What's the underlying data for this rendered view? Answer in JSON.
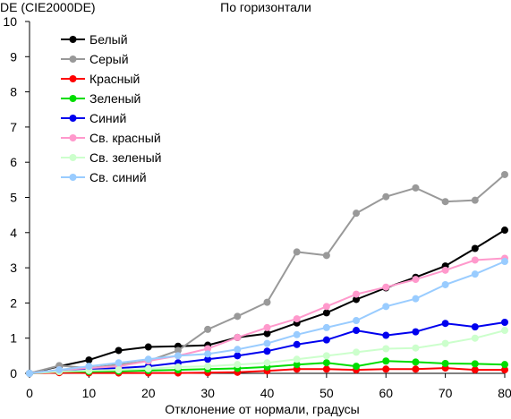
{
  "chart_data": {
    "type": "line",
    "title": "По горизонтали",
    "ylabel": "DE (CIE2000DE)",
    "xlabel": "Отклонение от нормали, градусы",
    "xlim": [
      0,
      80
    ],
    "ylim": [
      0,
      10
    ],
    "x_ticks": [
      "0",
      "10",
      "20",
      "30",
      "40",
      "50",
      "60",
      "70",
      "80"
    ],
    "y_ticks": [
      "0",
      "1",
      "2",
      "3",
      "4",
      "5",
      "6",
      "7",
      "8",
      "9",
      "10"
    ],
    "grid": false,
    "legend_position": "upper-left",
    "x": [
      0,
      5,
      10,
      15,
      20,
      25,
      30,
      35,
      40,
      45,
      50,
      55,
      60,
      65,
      70,
      75,
      80
    ],
    "series": [
      {
        "name": "Белый",
        "color": "#000000",
        "values": [
          0,
          0.2,
          0.38,
          0.65,
          0.75,
          0.77,
          0.8,
          1.02,
          1.13,
          1.43,
          1.72,
          2.1,
          2.43,
          2.73,
          3.05,
          3.55,
          4.07
        ]
      },
      {
        "name": "Серый",
        "color": "#999999",
        "values": [
          0,
          0.22,
          0.15,
          0.25,
          0.35,
          0.65,
          1.25,
          1.62,
          2.02,
          3.45,
          3.35,
          4.55,
          5.02,
          5.27,
          4.88,
          4.92,
          5.65
        ]
      },
      {
        "name": "Красный",
        "color": "#ff0000",
        "values": [
          0,
          0.02,
          0.01,
          0.01,
          0.01,
          0.01,
          0.02,
          0.03,
          0.07,
          0.12,
          0.12,
          0.1,
          0.12,
          0.12,
          0.15,
          0.1,
          0.1
        ]
      },
      {
        "name": "Зеленый",
        "color": "#00dd00",
        "values": [
          0,
          0.05,
          0.05,
          0.06,
          0.08,
          0.1,
          0.12,
          0.14,
          0.18,
          0.25,
          0.3,
          0.2,
          0.35,
          0.32,
          0.28,
          0.27,
          0.25
        ]
      },
      {
        "name": "Синий",
        "color": "#0000ee",
        "values": [
          0,
          0.08,
          0.12,
          0.15,
          0.2,
          0.3,
          0.4,
          0.5,
          0.63,
          0.82,
          0.95,
          1.22,
          1.08,
          1.18,
          1.42,
          1.32,
          1.45
        ]
      },
      {
        "name": "Св. красный",
        "color": "#ff99cc",
        "values": [
          0,
          0.1,
          0.15,
          0.2,
          0.35,
          0.5,
          0.7,
          1.02,
          1.3,
          1.55,
          1.9,
          2.25,
          2.45,
          2.67,
          2.93,
          3.22,
          3.27
        ]
      },
      {
        "name": "Св. зеленый",
        "color": "#ccffcc",
        "values": [
          0,
          0.05,
          0.08,
          0.1,
          0.13,
          0.18,
          0.2,
          0.25,
          0.3,
          0.4,
          0.5,
          0.6,
          0.7,
          0.72,
          0.85,
          1.0,
          1.22
        ]
      },
      {
        "name": "Св. синий",
        "color": "#99ccff",
        "values": [
          0,
          0.1,
          0.2,
          0.3,
          0.4,
          0.5,
          0.55,
          0.68,
          0.85,
          1.1,
          1.3,
          1.5,
          1.9,
          2.12,
          2.52,
          2.82,
          3.18
        ]
      }
    ]
  }
}
